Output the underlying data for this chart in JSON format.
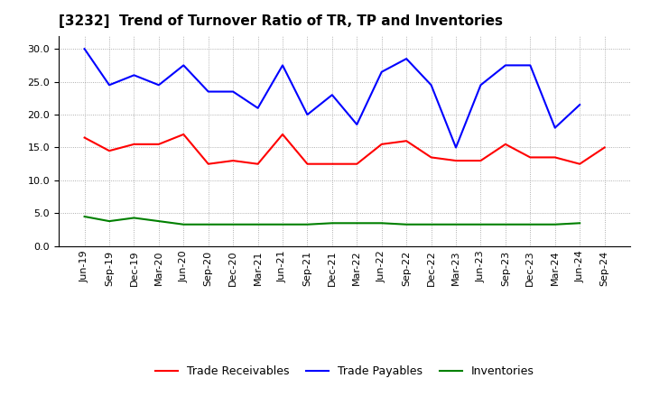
{
  "title": "[3232]  Trend of Turnover Ratio of TR, TP and Inventories",
  "x_labels": [
    "Jun-19",
    "Sep-19",
    "Dec-19",
    "Mar-20",
    "Jun-20",
    "Sep-20",
    "Dec-20",
    "Mar-21",
    "Jun-21",
    "Sep-21",
    "Dec-21",
    "Mar-22",
    "Jun-22",
    "Sep-22",
    "Dec-22",
    "Mar-23",
    "Jun-23",
    "Sep-23",
    "Dec-23",
    "Mar-24",
    "Jun-24",
    "Sep-24"
  ],
  "trade_receivables": [
    16.5,
    14.5,
    15.5,
    15.5,
    17.0,
    12.5,
    13.0,
    12.5,
    17.0,
    12.5,
    12.5,
    12.5,
    15.5,
    16.0,
    13.5,
    13.0,
    13.0,
    15.5,
    13.5,
    13.5,
    12.5,
    15.0
  ],
  "trade_payables": [
    30.0,
    24.5,
    26.0,
    24.5,
    27.5,
    23.5,
    23.5,
    21.0,
    27.5,
    20.0,
    23.0,
    18.5,
    26.5,
    28.5,
    24.5,
    15.0,
    24.5,
    27.5,
    27.5,
    18.0,
    21.5,
    null
  ],
  "inventories": [
    4.5,
    3.8,
    4.3,
    3.8,
    3.3,
    3.3,
    3.3,
    3.3,
    3.3,
    3.3,
    3.5,
    3.5,
    3.5,
    3.3,
    3.3,
    3.3,
    3.3,
    3.3,
    3.3,
    3.3,
    3.5,
    null
  ],
  "tr_color": "#ff0000",
  "tp_color": "#0000ff",
  "inv_color": "#008000",
  "background_color": "#ffffff",
  "plot_background": "#ffffff",
  "ylim": [
    0,
    32
  ],
  "yticks": [
    0.0,
    5.0,
    10.0,
    15.0,
    20.0,
    25.0,
    30.0
  ],
  "legend_labels": [
    "Trade Receivables",
    "Trade Payables",
    "Inventories"
  ],
  "title_fontsize": 11,
  "axis_fontsize": 8,
  "legend_fontsize": 9,
  "line_width": 1.5
}
